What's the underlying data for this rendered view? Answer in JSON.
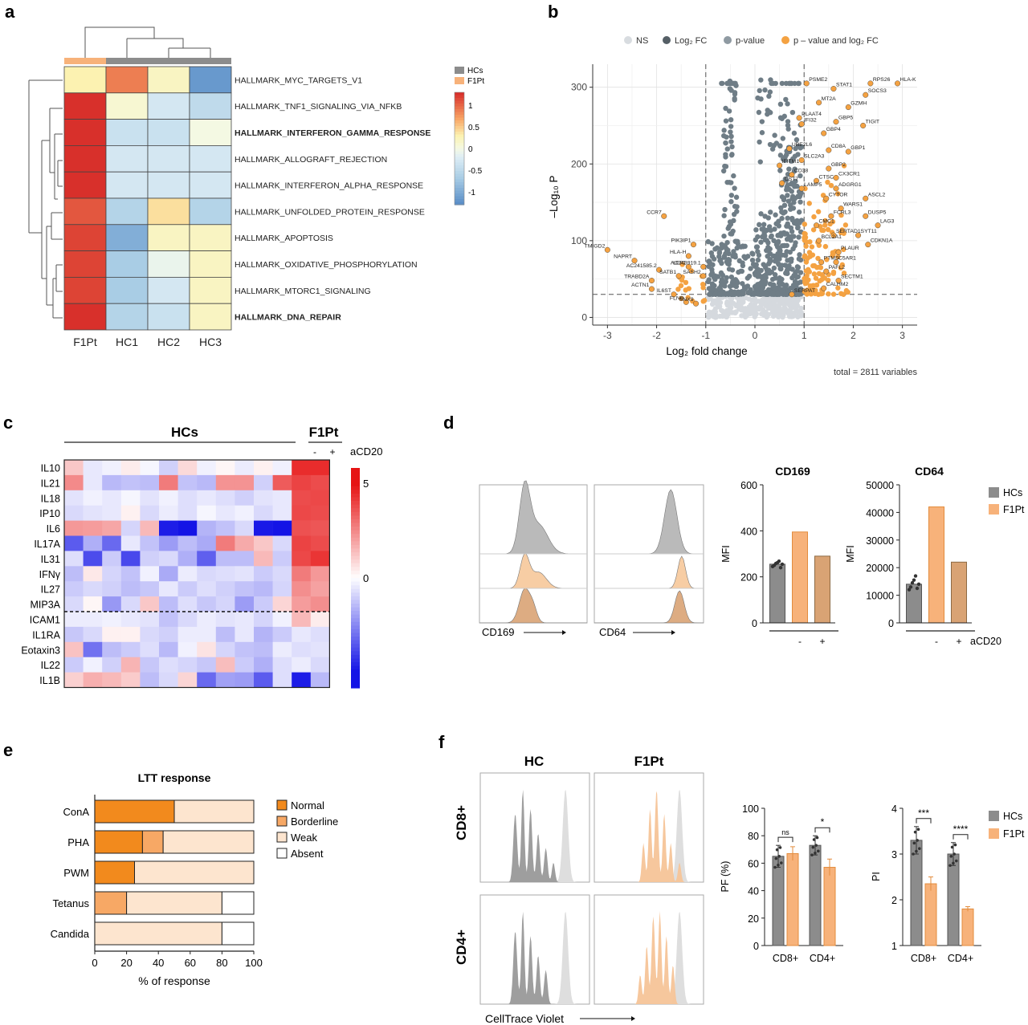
{
  "panel_labels": {
    "a": "a",
    "b": "b",
    "c": "c",
    "d": "d",
    "e": "e",
    "f": "f"
  },
  "colors": {
    "hc": "#8c8c8c",
    "f1pt": "#f7b27a",
    "f1pt_hist": "#e9a76a",
    "orange": "#f28a1d",
    "volcano_sig": "#f4a242",
    "volcano_ns": "#d5d9de",
    "volcano_p": "#6f7d86"
  },
  "chart_data": [
    {
      "panel": "a",
      "type": "heatmap",
      "columns": [
        "F1Pt",
        "HC1",
        "HC2",
        "HC3"
      ],
      "rows": [
        "HALLMARK_MYC_TARGETS_V1",
        "HALLMARK_TNF1_SIGNALING_VIA_NFKB",
        "HALLMARK_INTERFERON_GAMMA_RESPONSE",
        "HALLMARK_ALLOGRAFT_REJECTION",
        "HALLMARK_INTERFERON_ALPHA_RESPONSE",
        "HALLMARK_UNFOLDED_PROTEIN_RESPONSE",
        "HALLMARK_APOPTOSIS",
        "HALLMARK_OXIDATIVE_PHOSPHORYLATION",
        "HALLMARK_MTORC1_SIGNALING",
        "HALLMARK_DNA_REPAIR"
      ],
      "bold_rows": [
        2,
        9
      ],
      "values": [
        [
          0.3,
          0.9,
          0.2,
          -1.2
        ],
        [
          1.3,
          0.1,
          -0.3,
          -0.5
        ],
        [
          1.3,
          -0.4,
          -0.4,
          0.0
        ],
        [
          1.3,
          -0.3,
          -0.3,
          -0.3
        ],
        [
          1.3,
          -0.3,
          -0.3,
          -0.3
        ],
        [
          1.1,
          -0.6,
          0.4,
          -0.6
        ],
        [
          1.2,
          -1.0,
          0.2,
          0.2
        ],
        [
          1.2,
          -0.7,
          -0.1,
          0.2
        ],
        [
          1.2,
          -0.7,
          -0.3,
          0.2
        ],
        [
          1.3,
          -0.6,
          -0.4,
          0.2
        ]
      ],
      "legend": [
        "HCs",
        "F1Pt"
      ],
      "scale_ticks": [
        "1",
        "0.5",
        "0",
        "-0.5",
        "-1"
      ],
      "range": [
        -1.3,
        1.3
      ]
    },
    {
      "panel": "b",
      "type": "scatter",
      "legend": [
        "NS",
        "Log₂ FC",
        "p-value",
        "p – value and log₂ FC"
      ],
      "xlabel": "Log₂ fold change",
      "ylabel": "–Log₁₀ P",
      "xticks": [
        "-3",
        "-2",
        "-1",
        "0",
        "1",
        "2",
        "3"
      ],
      "yticks": [
        "0",
        "100",
        "200",
        "300"
      ],
      "xlim": [
        -3.3,
        3.3
      ],
      "ylim": [
        -10,
        330
      ],
      "vlines": [
        -1,
        1
      ],
      "hline": 30,
      "caption": "total = 2811 variables",
      "labels": [
        {
          "t": "PSME2",
          "x": 1.05,
          "y": 305
        },
        {
          "t": "STAT1",
          "x": 1.6,
          "y": 298
        },
        {
          "t": "RPS26",
          "x": 2.35,
          "y": 305
        },
        {
          "t": "HLA-K",
          "x": 2.9,
          "y": 305
        },
        {
          "t": "SOCS3",
          "x": 2.25,
          "y": 290
        },
        {
          "t": "MT2A",
          "x": 1.3,
          "y": 280
        },
        {
          "t": "GZMH",
          "x": 1.9,
          "y": 274
        },
        {
          "t": "PLAAT4",
          "x": 0.9,
          "y": 260
        },
        {
          "t": "GBP5",
          "x": 1.65,
          "y": 255
        },
        {
          "t": "TIGIT",
          "x": 2.2,
          "y": 250
        },
        {
          "t": "IFI32",
          "x": 0.95,
          "y": 252
        },
        {
          "t": "GBP4",
          "x": 1.4,
          "y": 240
        },
        {
          "t": "UBE2L6",
          "x": 0.7,
          "y": 220
        },
        {
          "t": "CD8A",
          "x": 1.5,
          "y": 218
        },
        {
          "t": "GBP1",
          "x": 1.9,
          "y": 216
        },
        {
          "t": "SLC2A3",
          "x": 0.95,
          "y": 205
        },
        {
          "t": "IFITM1",
          "x": 0.5,
          "y": 198
        },
        {
          "t": "GBP2",
          "x": 1.5,
          "y": 194
        },
        {
          "t": "CD38",
          "x": 0.75,
          "y": 186
        },
        {
          "t": "CX3CR1",
          "x": 1.65,
          "y": 182
        },
        {
          "t": "CTSC",
          "x": 1.25,
          "y": 178
        },
        {
          "t": "CST7",
          "x": 0.55,
          "y": 175
        },
        {
          "t": "LAMP5",
          "x": 0.95,
          "y": 168
        },
        {
          "t": "ADGRG1",
          "x": 1.65,
          "y": 168
        },
        {
          "t": "CYTOR",
          "x": 1.45,
          "y": 155
        },
        {
          "t": "ASCL2",
          "x": 2.25,
          "y": 155
        },
        {
          "t": "WARS1",
          "x": 1.75,
          "y": 142
        },
        {
          "t": "DUSP5",
          "x": 2.25,
          "y": 132
        },
        {
          "t": "FCRL3",
          "x": 1.55,
          "y": 132
        },
        {
          "t": "LAG3",
          "x": 2.5,
          "y": 120
        },
        {
          "t": "CMC1",
          "x": 1.25,
          "y": 120
        },
        {
          "t": "SERTAD1",
          "x": 1.6,
          "y": 107
        },
        {
          "t": "SYT11",
          "x": 2.1,
          "y": 107
        },
        {
          "t": "BCL2A1",
          "x": 1.3,
          "y": 100
        },
        {
          "t": "CDKN1A",
          "x": 2.3,
          "y": 95
        },
        {
          "t": "PLAUR",
          "x": 1.7,
          "y": 85
        },
        {
          "t": "C5AR1",
          "x": 1.65,
          "y": 72
        },
        {
          "t": "PTMS",
          "x": 1.35,
          "y": 72
        },
        {
          "t": "PAFL2",
          "x": 1.45,
          "y": 60
        },
        {
          "t": "SECTM1",
          "x": 1.7,
          "y": 48
        },
        {
          "t": "CALHM2",
          "x": 1.4,
          "y": 38
        },
        {
          "t": "SERPAT",
          "x": 0.75,
          "y": 30
        },
        {
          "t": "CCR7",
          "x": -1.85,
          "y": 132
        },
        {
          "t": "TMIGD2",
          "x": -3.0,
          "y": 88
        },
        {
          "t": "NAPRT",
          "x": -2.45,
          "y": 74
        },
        {
          "t": "PIK3IP1",
          "x": -1.25,
          "y": 95
        },
        {
          "t": "HLA-H",
          "x": -1.35,
          "y": 80
        },
        {
          "t": "LEF1",
          "x": -1.35,
          "y": 66
        },
        {
          "t": "AC243919.1",
          "x": -1.05,
          "y": 66
        },
        {
          "t": "AC241585.2",
          "x": -1.95,
          "y": 62
        },
        {
          "t": "SATB1",
          "x": -1.55,
          "y": 54
        },
        {
          "t": "SASH2",
          "x": -1.05,
          "y": 54
        },
        {
          "t": "TRABD2A",
          "x": -2.1,
          "y": 48
        },
        {
          "t": "ACTN1",
          "x": -2.1,
          "y": 37
        },
        {
          "t": "IL6ST",
          "x": -1.65,
          "y": 30
        },
        {
          "t": "SNX9",
          "x": -1.2,
          "y": 18
        },
        {
          "t": "FLNB",
          "x": -1.4,
          "y": 20
        }
      ]
    },
    {
      "panel": "c",
      "type": "heatmap",
      "group_labels": [
        "HCs",
        "F1Pt"
      ],
      "treatment_label": "aCD20",
      "treatment_signs": [
        "-",
        "+"
      ],
      "rows": [
        "IL10",
        "IL21",
        "IL18",
        "IP10",
        "IL6",
        "IL17A",
        "IL31",
        "IFNγ",
        "IL27",
        "MIP3A",
        "ICAM1",
        "IL1RA",
        "Eotaxin3",
        "IL22",
        "IL1B"
      ],
      "n_hc": 12,
      "scale_ticks": [
        "5",
        "0"
      ],
      "range": [
        -5,
        5
      ],
      "values": [
        [
          1.2,
          -0.5,
          -0.3,
          0.4,
          -0.2,
          -1.0,
          0.8,
          -0.3,
          0.2,
          -0.4,
          0.3,
          -0.3,
          4.5,
          4.5
        ],
        [
          2.5,
          -0.5,
          -1.5,
          -1.3,
          -1.4,
          2.8,
          -1.3,
          -1.5,
          2.3,
          2.3,
          -1.0,
          3.5,
          4.0,
          3.8
        ],
        [
          -0.6,
          -0.3,
          -0.5,
          -0.2,
          -0.6,
          -0.3,
          -0.7,
          -0.5,
          -0.7,
          -1.0,
          -0.6,
          -0.5,
          3.8,
          3.9
        ],
        [
          -0.8,
          -0.6,
          -0.5,
          0.3,
          -0.8,
          -0.4,
          -0.7,
          -0.2,
          -0.5,
          -0.3,
          -0.8,
          -0.5,
          3.9,
          3.8
        ],
        [
          2.2,
          2.1,
          1.9,
          -0.9,
          1.5,
          -4.8,
          -5.0,
          -1.6,
          -1.3,
          -0.8,
          -4.9,
          -5.0,
          3.7,
          3.6
        ],
        [
          -3.5,
          -1.7,
          -3.2,
          -0.5,
          -1.3,
          -2.1,
          -1.4,
          -1.8,
          2.8,
          1.8,
          1.2,
          -0.8,
          4.0,
          3.8
        ],
        [
          -0.7,
          -3.8,
          -1.1,
          -3.9,
          -1.0,
          -0.8,
          -1.7,
          -3.4,
          -1.4,
          -1.4,
          1.5,
          -1.1,
          3.9,
          4.3
        ],
        [
          -1.4,
          0.5,
          -0.9,
          -1.3,
          -0.3,
          -1.8,
          -0.4,
          -0.8,
          -0.7,
          -0.6,
          -1.1,
          -0.8,
          2.8,
          2.2
        ],
        [
          -1.1,
          -0.8,
          -1.0,
          -1.4,
          -1.2,
          -0.5,
          -1.1,
          -0.7,
          -1.0,
          -1.3,
          -1.5,
          -0.9,
          2.4,
          2.0
        ],
        [
          -0.8,
          0.2,
          -2.2,
          -0.8,
          1.2,
          -1.4,
          -0.7,
          -1.2,
          -0.9,
          -2.1,
          -1.1,
          0.9,
          2.1,
          2.4
        ],
        [
          -0.4,
          -0.4,
          -0.3,
          -0.5,
          -0.6,
          -1.3,
          -0.8,
          -0.4,
          -0.6,
          -0.5,
          -0.9,
          -0.3,
          1.5,
          0.4
        ],
        [
          -1.2,
          -0.8,
          0.3,
          0.3,
          -0.8,
          -1.0,
          -0.4,
          -0.4,
          -1.4,
          -0.5,
          -1.6,
          -1.1,
          -0.5,
          -0.7
        ],
        [
          1.3,
          -3.0,
          -1.4,
          -1.1,
          -0.7,
          -1.5,
          -0.3,
          0.6,
          -0.9,
          -1.3,
          -1.4,
          -0.4,
          -0.7,
          -0.6
        ],
        [
          -1.1,
          -0.3,
          -1.0,
          1.6,
          -1.2,
          -0.7,
          -0.9,
          -1.2,
          1.4,
          -1.1,
          -1.7,
          -0.7,
          -0.4,
          -0.8
        ],
        [
          1.0,
          1.7,
          1.5,
          1.1,
          -1.4,
          -0.8,
          0.9,
          -3.2,
          -2.0,
          -2.1,
          -3.5,
          -0.7,
          -4.8,
          -1.5
        ]
      ]
    },
    {
      "panel": "d",
      "type": "bar",
      "hist_axes": [
        "CD169",
        "CD64"
      ],
      "legend": [
        "HCs",
        "F1Pt"
      ],
      "treatment_label": "aCD20",
      "treatment_signs": [
        "-",
        "+"
      ],
      "charts": [
        {
          "title": "CD169",
          "ylabel": "MFI",
          "yticks": [
            "0",
            "200",
            "400",
            "600"
          ],
          "ylim": [
            0,
            600
          ],
          "values": [
            255,
            395,
            290
          ],
          "points": [
            245,
            250,
            258,
            262,
            268,
            240,
            255
          ]
        },
        {
          "title": "CD64",
          "ylabel": "MFI",
          "yticks": [
            "0",
            "10000",
            "20000",
            "30000",
            "40000",
            "50000"
          ],
          "ylim": [
            0,
            50000
          ],
          "values": [
            14000,
            42000,
            22000
          ],
          "points": [
            12000,
            13000,
            14500,
            15500,
            17000,
            12500,
            14000
          ]
        }
      ]
    },
    {
      "panel": "e",
      "type": "bar",
      "orientation": "horizontal",
      "stacked": true,
      "title": "LTT response",
      "xlabel": "% of response",
      "xticks": [
        "0",
        "20",
        "40",
        "60",
        "80",
        "100"
      ],
      "xlim": [
        0,
        100
      ],
      "categories": [
        "ConA",
        "PHA",
        "PWM",
        "Tetanus",
        "Candida"
      ],
      "series": [
        {
          "name": "Normal",
          "color": "#f28a1d",
          "values": [
            50,
            30,
            25,
            0,
            0
          ]
        },
        {
          "name": "Borderline",
          "color": "#f7a865",
          "values": [
            0,
            13,
            0,
            20,
            0
          ]
        },
        {
          "name": "Weak",
          "color": "#fde5cf",
          "values": [
            50,
            57,
            75,
            60,
            80
          ]
        },
        {
          "name": "Absent",
          "color": "#ffffff",
          "values": [
            0,
            0,
            0,
            20,
            20
          ]
        }
      ]
    },
    {
      "panel": "f",
      "type": "bar",
      "col_labels": [
        "HC",
        "F1Pt"
      ],
      "row_labels": [
        "CD8+",
        "CD4+"
      ],
      "hist_xlabel": "CellTrace Violet",
      "legend": [
        "HCs",
        "F1Pt"
      ],
      "categories": [
        "CD8+",
        "CD4+"
      ],
      "charts": [
        {
          "ylabel": "PF (%)",
          "yticks": [
            "0",
            "20",
            "40",
            "60",
            "80",
            "100"
          ],
          "ylim": [
            0,
            100
          ],
          "hc": [
            65,
            73
          ],
          "f1pt": [
            67,
            57
          ],
          "hc_err": [
            8,
            7
          ],
          "f1pt_err": [
            5,
            6
          ],
          "sig": [
            "ns",
            "*"
          ]
        },
        {
          "ylabel": "PI",
          "yticks": [
            "1",
            "2",
            "3",
            "4"
          ],
          "ylim": [
            1,
            4
          ],
          "hc": [
            3.3,
            3.0
          ],
          "f1pt": [
            2.35,
            1.8
          ],
          "hc_err": [
            0.3,
            0.25
          ],
          "f1pt_err": [
            0.15,
            0.05
          ],
          "sig": [
            "***",
            "****"
          ]
        }
      ]
    }
  ]
}
